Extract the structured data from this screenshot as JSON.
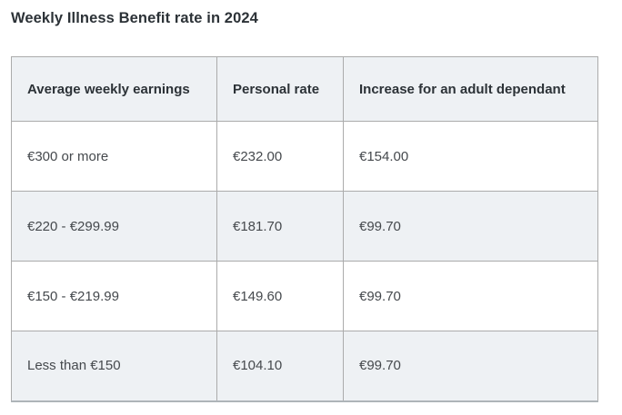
{
  "page": {
    "title": "Weekly Illness Benefit rate in 2024"
  },
  "table": {
    "headers": [
      "Average weekly earnings",
      "Personal rate",
      "Increase for an adult dependant"
    ],
    "rows": [
      [
        "€300 or more",
        "€232.00",
        "€154.00"
      ],
      [
        "€220 - €299.99",
        "€181.70",
        "€99.70"
      ],
      [
        "€150 - €219.99",
        "€149.60",
        "€99.70"
      ],
      [
        "Less than €150",
        "€104.10",
        "€99.70"
      ]
    ]
  },
  "colors": {
    "title_text": "#2c3237",
    "cell_text": "#45494d",
    "header_background": "#eef1f4",
    "striped_row_background": "#eef1f4",
    "row_background": "#ffffff",
    "border": "#ababab",
    "page_background": "#ffffff"
  }
}
